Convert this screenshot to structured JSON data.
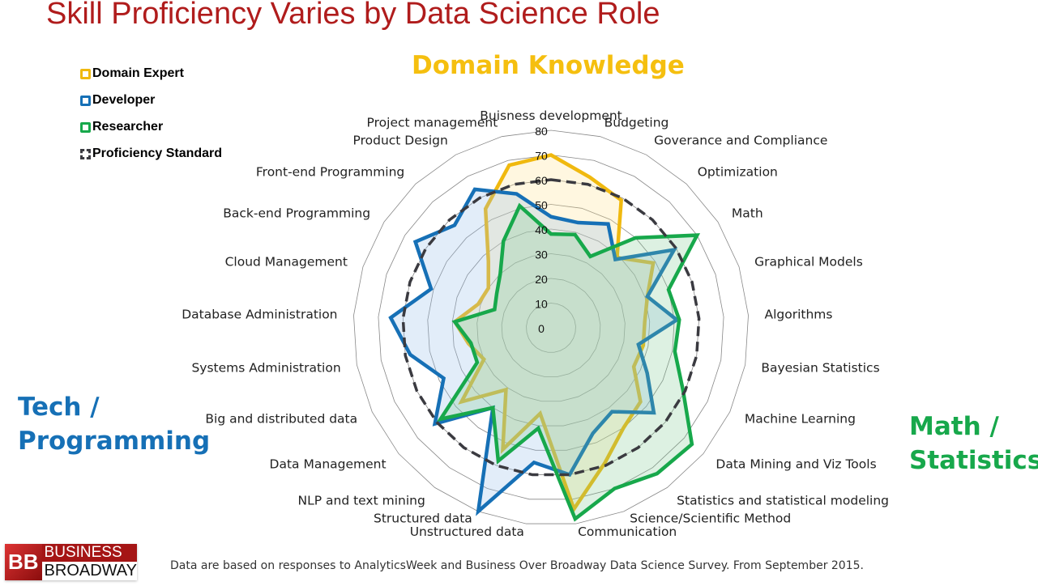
{
  "title": "Skill Proficiency Varies by Data Science Role",
  "regions": {
    "domain": "Domain Knowledge",
    "tech_line1": "Tech /",
    "tech_line2": "Programming",
    "math_line1": "Math /",
    "math_line2": "Statistics"
  },
  "footnote": "Data are based on responses to AnalyticsWeek and Business Over Broadway Data Science Survey. From September 2015.",
  "logo": {
    "mark": "BB",
    "line1": "BUSINESS",
    "line2": "BROADWAY"
  },
  "chart_data": {
    "type": "radar",
    "title": "Skill Proficiency Varies by Data Science Role",
    "categories": [
      "Buisness development",
      "Budgeting",
      "Goverance and Compliance",
      "Optimization",
      "Math",
      "Graphical Models",
      "Algorithms",
      "Bayesian Statistics",
      "Machine Learning",
      "Data Mining and Viz Tools",
      "Statistics and statistical modeling",
      "Science/Scientific Method",
      "Communication",
      "Unstructured data",
      "Structured data",
      "NLP and text mining",
      "Data Management",
      "Big and distributed data",
      "Systems Administration",
      "Database Administration",
      "Cloud Management",
      "Back-end Programming",
      "Front-end Programming",
      "Product Design",
      "Project management"
    ],
    "rlim": [
      0,
      80
    ],
    "ticks": [
      0,
      10,
      20,
      30,
      40,
      50,
      60,
      70,
      80
    ],
    "grid": true,
    "legend_position": "top-left",
    "series": [
      {
        "name": "Domain Expert",
        "color": "#f0b90f",
        "fill": "rgba(255,225,130,0.25)",
        "values": [
          70,
          63,
          59,
          39,
          49,
          41,
          38,
          38,
          37,
          47,
          50,
          59,
          74,
          35,
          53,
          31,
          47,
          30,
          34,
          39,
          31,
          30,
          37,
          55,
          68
        ]
      },
      {
        "name": "Developer",
        "color": "#1670b6",
        "fill": "rgba(150,190,235,0.28)",
        "values": [
          45,
          44,
          48,
          38,
          59,
          41,
          51,
          36,
          43,
          54,
          42,
          46,
          60,
          55,
          80,
          40,
          61,
          48,
          58,
          65,
          51,
          65,
          57,
          64,
          56
        ]
      },
      {
        "name": "Researcher",
        "color": "#17a84b",
        "fill": "rgba(120,200,140,0.25)",
        "values": [
          38,
          39,
          33,
          50,
          70,
          50,
          52,
          51,
          59,
          74,
          73,
          70,
          78,
          41,
          58,
          40,
          58,
          33,
          33,
          39,
          24,
          26,
          30,
          40,
          51
        ]
      },
      {
        "name": "Proficiency Standard",
        "color": "#3a3a40",
        "dashed": true,
        "values": [
          60,
          60,
          60,
          60,
          60,
          60,
          60,
          60,
          60,
          60,
          60,
          60,
          60,
          60,
          60,
          60,
          60,
          60,
          60,
          60,
          60,
          60,
          60,
          60,
          60
        ]
      }
    ]
  }
}
